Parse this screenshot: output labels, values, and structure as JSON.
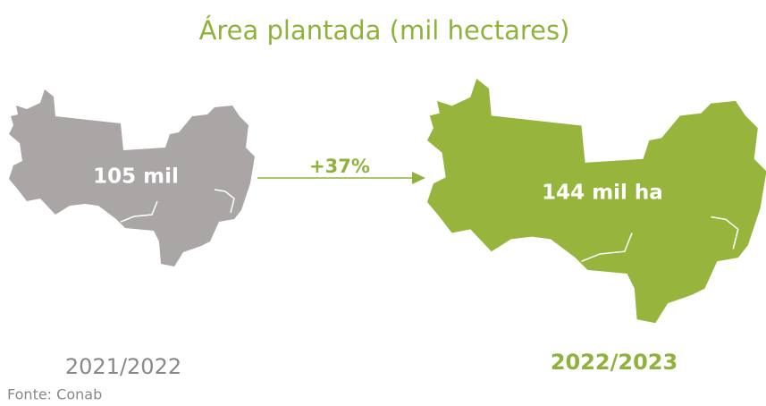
{
  "title": "Área plantada (mil hectares)",
  "previous": {
    "value_label": "105 mil",
    "period": "2021/2022"
  },
  "change": "+37%",
  "current": {
    "value_label": "144 mil ha",
    "period": "2022/2023"
  },
  "source": "Fonte: Conab"
}
